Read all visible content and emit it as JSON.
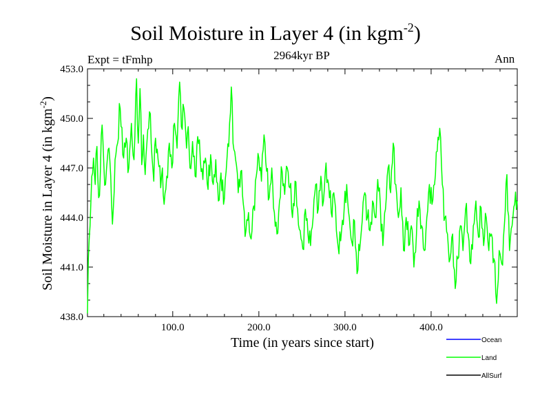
{
  "chart_data": {
    "type": "line",
    "title": "Soil Moisture in Layer 4 (in kgm",
    "title_exp": "-2",
    "title_close": ")",
    "experiment": "Expt = tFmhp",
    "subtitle": "2964kyr BP",
    "season": "Ann",
    "xlabel": "Time (in years since start)",
    "ylabel": "Soil Moisture in Layer 4 (in kgm",
    "ylabel_exp": "-2",
    "ylabel_close": ")",
    "xlim": [
      1,
      500
    ],
    "ylim": [
      438.0,
      453.0
    ],
    "xticks": [
      100,
      200,
      300,
      400
    ],
    "xtick_labels": [
      "100.0",
      "200.0",
      "300.0",
      "400.0"
    ],
    "yticks": [
      438,
      441,
      444,
      447,
      450,
      453
    ],
    "ytick_labels": [
      "438.0",
      "441.0",
      "444.0",
      "447.0",
      "450.0",
      "453.0"
    ],
    "legend": [
      {
        "name": "Ocean",
        "color": "#0000ff"
      },
      {
        "name": "Land",
        "color": "#00ff00"
      },
      {
        "name": "AllSurf",
        "color": "#000000"
      }
    ],
    "series": [
      {
        "name": "Land",
        "color": "#00ff00",
        "anchors": [
          [
            1,
            438.2
          ],
          [
            2,
            441.5
          ],
          [
            4,
            443.5
          ],
          [
            6,
            446.5
          ],
          [
            8,
            447.6
          ],
          [
            10,
            446.0
          ],
          [
            12,
            448.3
          ],
          [
            14,
            445.2
          ],
          [
            16,
            446.8
          ],
          [
            18,
            449.6
          ],
          [
            20,
            447.2
          ],
          [
            22,
            446.0
          ],
          [
            24,
            447.5
          ],
          [
            26,
            448.2
          ],
          [
            28,
            446.5
          ],
          [
            30,
            443.6
          ],
          [
            33,
            447.5
          ],
          [
            36,
            448.5
          ],
          [
            38,
            450.9
          ],
          [
            40,
            449.5
          ],
          [
            43,
            447.6
          ],
          [
            46,
            448.8
          ],
          [
            49,
            447.0
          ],
          [
            52,
            449.7
          ],
          [
            55,
            447.5
          ],
          [
            58,
            452.4
          ],
          [
            60,
            448.5
          ],
          [
            62,
            451.8
          ],
          [
            64,
            447.2
          ],
          [
            66,
            449.0
          ],
          [
            68,
            446.6
          ],
          [
            70,
            448.5
          ],
          [
            73,
            450.4
          ],
          [
            75,
            448.5
          ],
          [
            78,
            446.2
          ],
          [
            80,
            448.8
          ],
          [
            83,
            447.5
          ],
          [
            86,
            445.8
          ],
          [
            88,
            447.0
          ],
          [
            90,
            444.8
          ],
          [
            93,
            446.5
          ],
          [
            96,
            448.5
          ],
          [
            99,
            447.0
          ],
          [
            102,
            449.7
          ],
          [
            105,
            448.2
          ],
          [
            108,
            452.2
          ],
          [
            110,
            449.5
          ],
          [
            113,
            450.6
          ],
          [
            116,
            448.2
          ],
          [
            118,
            449.5
          ],
          [
            120,
            447.0
          ],
          [
            123,
            448.6
          ],
          [
            126,
            446.5
          ],
          [
            129,
            448.9
          ],
          [
            132,
            447.5
          ],
          [
            135,
            446.3
          ],
          [
            138,
            447.6
          ],
          [
            141,
            445.7
          ],
          [
            144,
            447.8
          ],
          [
            147,
            446.0
          ],
          [
            150,
            447.5
          ],
          [
            153,
            445.0
          ],
          [
            156,
            446.7
          ],
          [
            159,
            444.8
          ],
          [
            162,
            446.8
          ],
          [
            165,
            448.3
          ],
          [
            168,
            451.9
          ],
          [
            170,
            448.5
          ],
          [
            173,
            447.5
          ],
          [
            176,
            445.5
          ],
          [
            179,
            446.8
          ],
          [
            182,
            444.8
          ],
          [
            185,
            443.2
          ],
          [
            188,
            444.3
          ],
          [
            191,
            442.7
          ],
          [
            194,
            444.7
          ],
          [
            197,
            446.5
          ],
          [
            200,
            447.6
          ],
          [
            203,
            446.2
          ],
          [
            206,
            449.0
          ],
          [
            209,
            446.8
          ],
          [
            212,
            445.2
          ],
          [
            215,
            447.0
          ],
          [
            218,
            444.3
          ],
          [
            221,
            443.0
          ],
          [
            224,
            445.0
          ],
          [
            227,
            446.8
          ],
          [
            230,
            445.4
          ],
          [
            233,
            447.0
          ],
          [
            236,
            445.8
          ],
          [
            239,
            444.0
          ],
          [
            242,
            446.2
          ],
          [
            245,
            444.5
          ],
          [
            248,
            443.2
          ],
          [
            251,
            442.1
          ],
          [
            254,
            444.5
          ],
          [
            257,
            443.0
          ],
          [
            260,
            442.3
          ],
          [
            263,
            444.0
          ],
          [
            266,
            446.0
          ],
          [
            269,
            444.5
          ],
          [
            272,
            446.5
          ],
          [
            275,
            445.0
          ],
          [
            278,
            447.3
          ],
          [
            281,
            446.0
          ],
          [
            284,
            444.3
          ],
          [
            287,
            445.5
          ],
          [
            290,
            443.2
          ],
          [
            293,
            441.8
          ],
          [
            296,
            443.2
          ],
          [
            299,
            444.5
          ],
          [
            302,
            446.0
          ],
          [
            305,
            444.0
          ],
          [
            308,
            442.5
          ],
          [
            311,
            443.8
          ],
          [
            314,
            440.6
          ],
          [
            317,
            442.0
          ],
          [
            320,
            443.8
          ],
          [
            323,
            445.5
          ],
          [
            326,
            444.0
          ],
          [
            329,
            443.2
          ],
          [
            332,
            445.0
          ],
          [
            335,
            444.0
          ],
          [
            338,
            446.3
          ],
          [
            341,
            444.8
          ],
          [
            344,
            442.3
          ],
          [
            347,
            444.5
          ],
          [
            350,
            447.0
          ],
          [
            353,
            445.5
          ],
          [
            356,
            448.5
          ],
          [
            359,
            446.0
          ],
          [
            362,
            444.0
          ],
          [
            365,
            445.8
          ],
          [
            368,
            442.0
          ],
          [
            371,
            444.0
          ],
          [
            374,
            442.3
          ],
          [
            377,
            443.5
          ],
          [
            380,
            441.0
          ],
          [
            383,
            443.0
          ],
          [
            386,
            445.0
          ],
          [
            389,
            443.5
          ],
          [
            392,
            442.0
          ],
          [
            395,
            444.0
          ],
          [
            398,
            446.0
          ],
          [
            401,
            444.8
          ],
          [
            404,
            446.0
          ],
          [
            407,
            448.0
          ],
          [
            410,
            449.4
          ],
          [
            413,
            446.0
          ],
          [
            416,
            444.0
          ],
          [
            419,
            443.0
          ],
          [
            422,
            441.5
          ],
          [
            425,
            443.0
          ],
          [
            428,
            439.7
          ],
          [
            431,
            441.5
          ],
          [
            434,
            443.5
          ],
          [
            437,
            442.0
          ],
          [
            440,
            444.5
          ],
          [
            443,
            443.0
          ],
          [
            446,
            441.2
          ],
          [
            449,
            443.5
          ],
          [
            452,
            445.0
          ],
          [
            455,
            442.8
          ],
          [
            458,
            444.6
          ],
          [
            461,
            442.3
          ],
          [
            464,
            444.0
          ],
          [
            467,
            442.0
          ],
          [
            470,
            443.0
          ],
          [
            473,
            441.5
          ],
          [
            476,
            438.8
          ],
          [
            479,
            442.0
          ],
          [
            482,
            441.2
          ],
          [
            485,
            443.5
          ],
          [
            488,
            446.6
          ],
          [
            491,
            442.0
          ],
          [
            494,
            443.5
          ],
          [
            497,
            444.8
          ],
          [
            500,
            445.0
          ]
        ]
      }
    ]
  }
}
